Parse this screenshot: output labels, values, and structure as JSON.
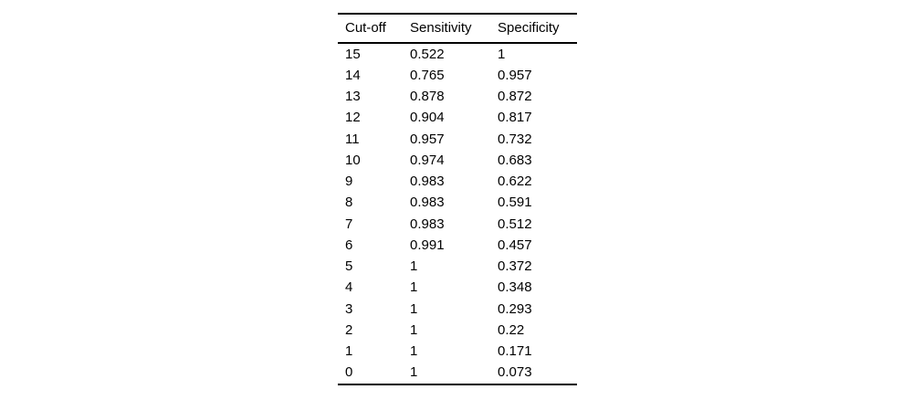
{
  "table": {
    "headers": [
      "Cut-off",
      "Sensitivity",
      "Specificity"
    ],
    "rows": [
      [
        "15",
        "0.522",
        "1"
      ],
      [
        "14",
        "0.765",
        "0.957"
      ],
      [
        "13",
        "0.878",
        "0.872"
      ],
      [
        "12",
        "0.904",
        "0.817"
      ],
      [
        "11",
        "0.957",
        "0.732"
      ],
      [
        "10",
        "0.974",
        "0.683"
      ],
      [
        "9",
        "0.983",
        "0.622"
      ],
      [
        "8",
        "0.983",
        "0.591"
      ],
      [
        "7",
        "0.983",
        "0.512"
      ],
      [
        "6",
        "0.991",
        "0.457"
      ],
      [
        "5",
        "1",
        "0.372"
      ],
      [
        "4",
        "1",
        "0.348"
      ],
      [
        "3",
        "1",
        "0.293"
      ],
      [
        "2",
        "1",
        "0.22"
      ],
      [
        "1",
        "1",
        "0.171"
      ],
      [
        "0",
        "1",
        "0.073"
      ]
    ]
  },
  "chart_data": {
    "type": "table",
    "columns": [
      "Cut-off",
      "Sensitivity",
      "Specificity"
    ],
    "rows": [
      [
        15,
        0.522,
        1
      ],
      [
        14,
        0.765,
        0.957
      ],
      [
        13,
        0.878,
        0.872
      ],
      [
        12,
        0.904,
        0.817
      ],
      [
        11,
        0.957,
        0.732
      ],
      [
        10,
        0.974,
        0.683
      ],
      [
        9,
        0.983,
        0.622
      ],
      [
        8,
        0.983,
        0.591
      ],
      [
        7,
        0.983,
        0.512
      ],
      [
        6,
        0.991,
        0.457
      ],
      [
        5,
        1,
        0.372
      ],
      [
        4,
        1,
        0.348
      ],
      [
        3,
        1,
        0.293
      ],
      [
        2,
        1,
        0.22
      ],
      [
        1,
        1,
        0.171
      ],
      [
        0,
        1,
        0.073
      ]
    ]
  },
  "colors": {
    "background": "#ffffff",
    "text": "#000000",
    "rule": "#000000"
  }
}
